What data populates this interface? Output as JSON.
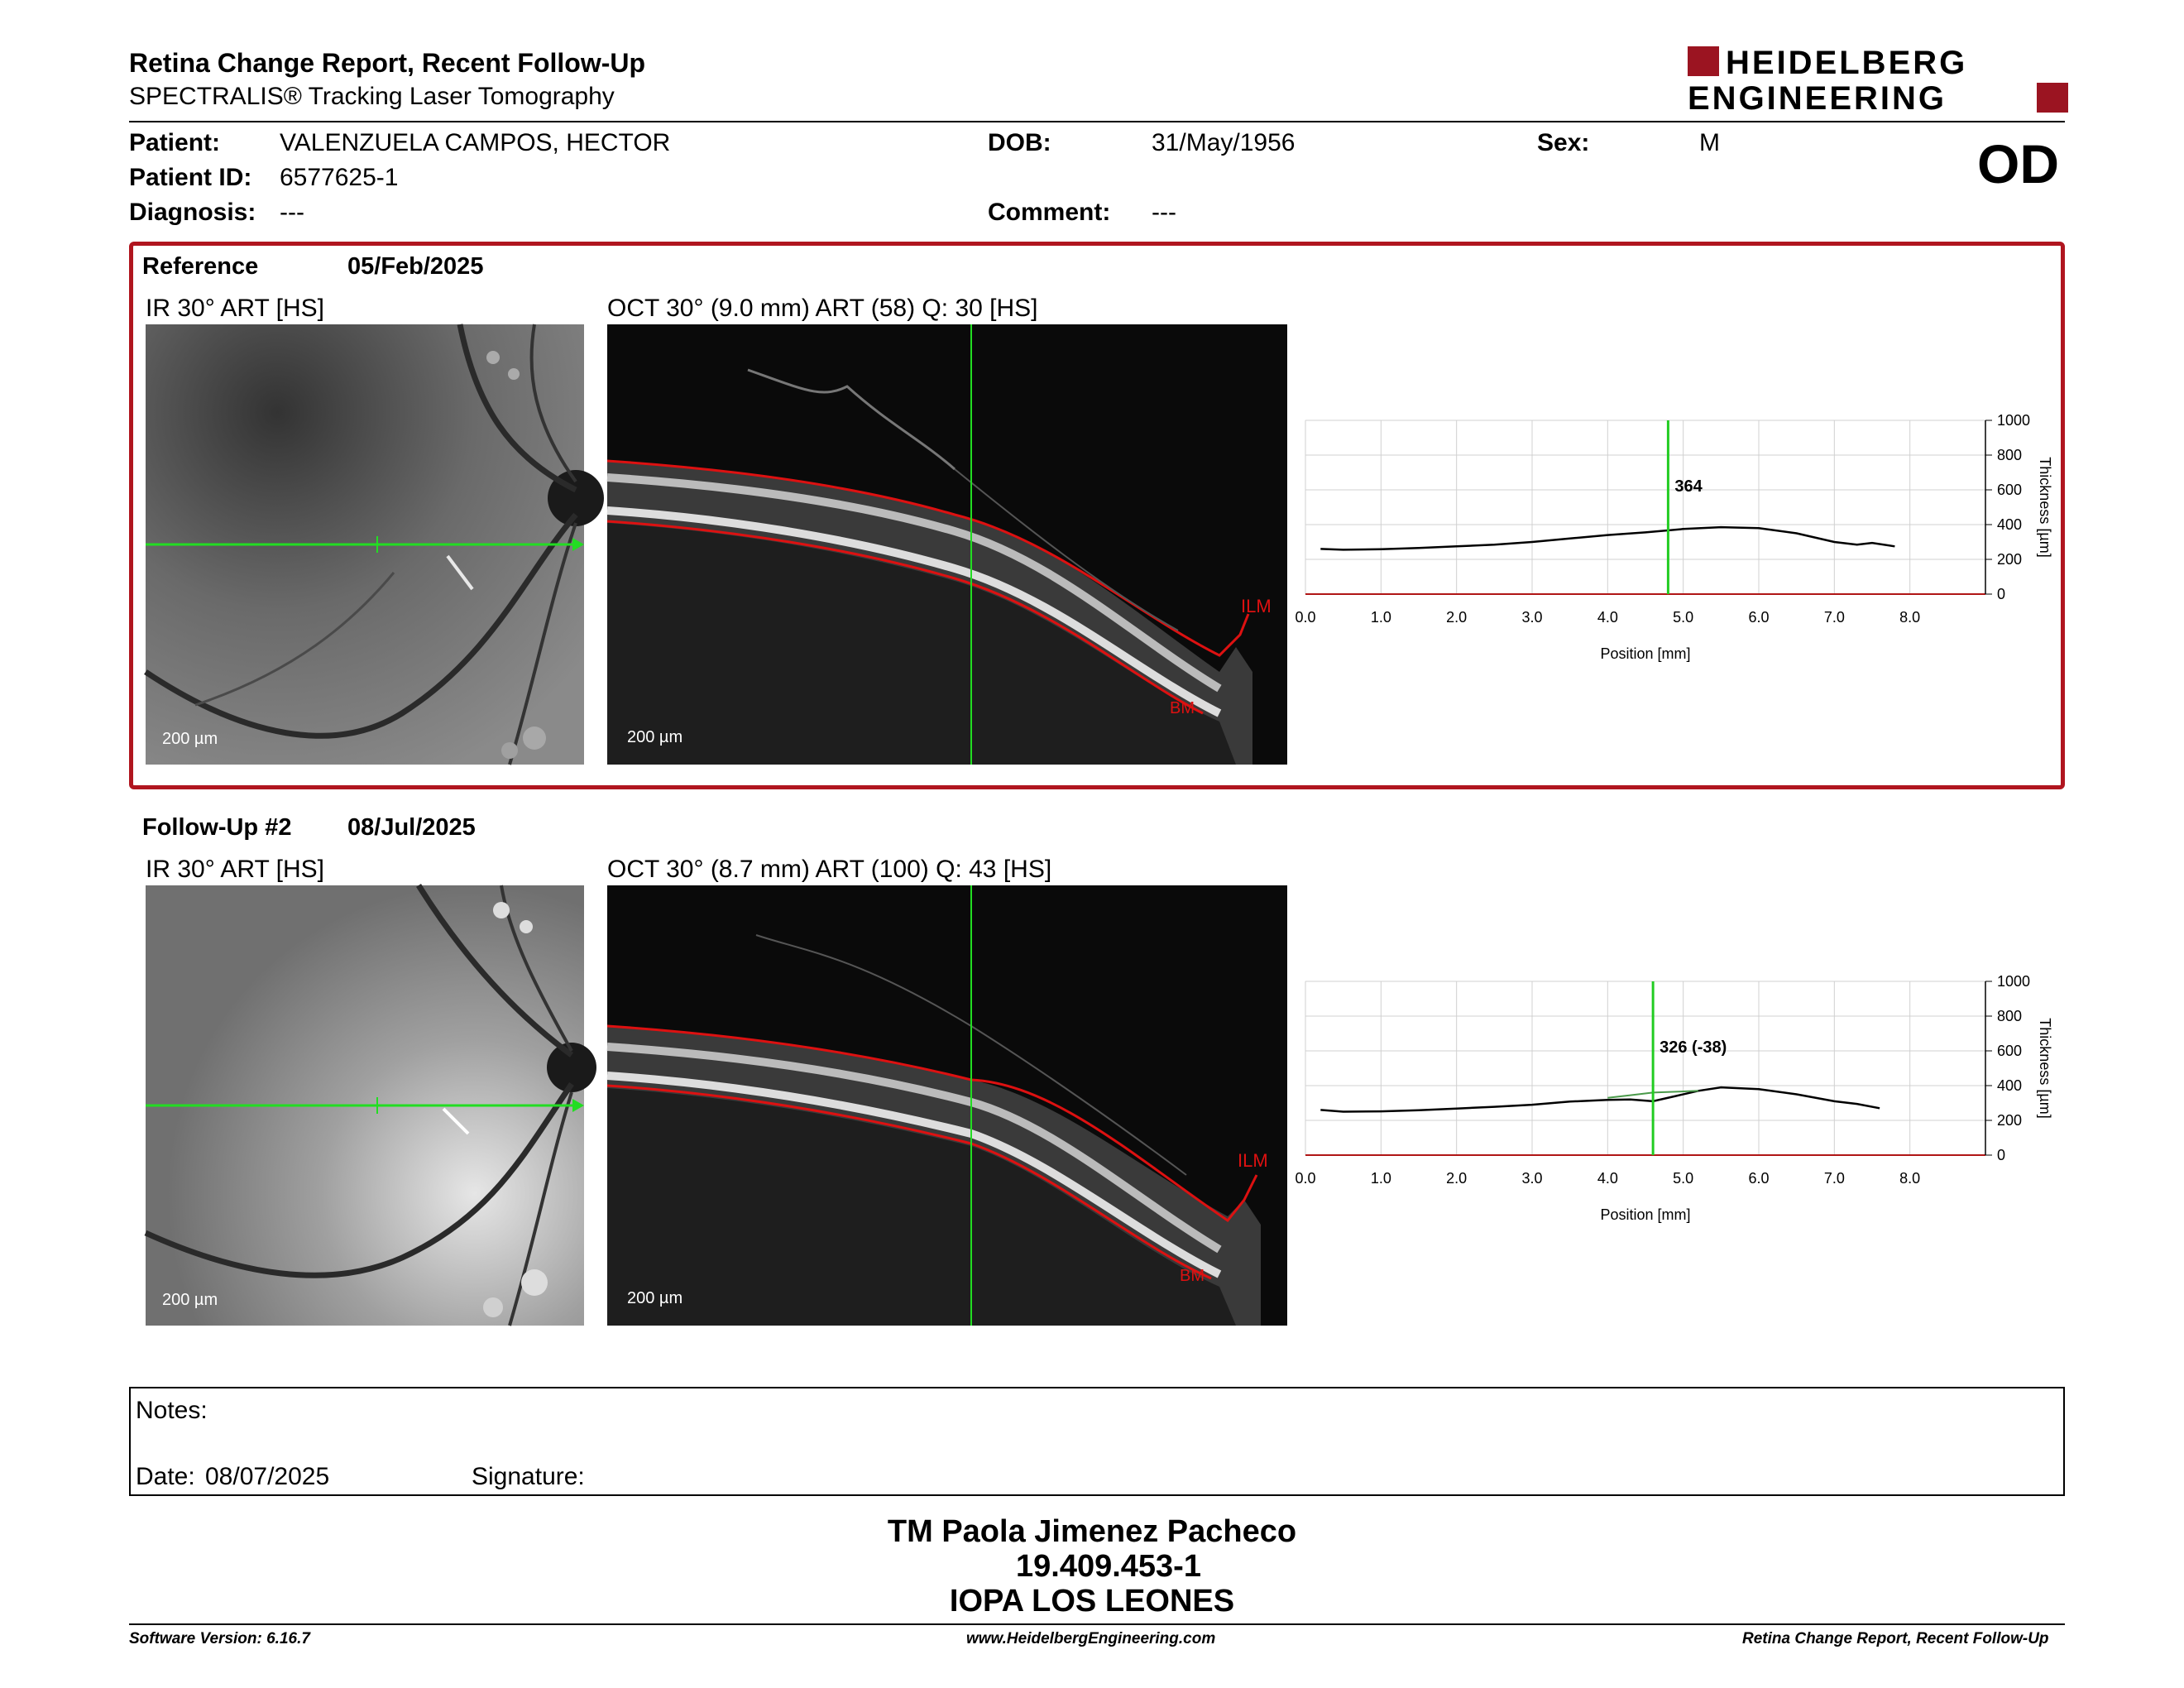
{
  "header": {
    "title": "Retina Change Report, Recent Follow-Up",
    "subtitle": "SPECTRALIS® Tracking Laser Tomography",
    "logo_line1": "HEIDELBERG",
    "logo_line2": "ENGINEERING",
    "eye": "OD"
  },
  "patient": {
    "patient_label": "Patient:",
    "patient_value": "VALENZUELA CAMPOS, HECTOR",
    "id_label": "Patient ID:",
    "id_value": "6577625-1",
    "diagnosis_label": "Diagnosis:",
    "diagnosis_value": "---",
    "dob_label": "DOB:",
    "dob_value": "31/May/1956",
    "comment_label": "Comment:",
    "comment_value": "---",
    "sex_label": "Sex:",
    "sex_value": "M"
  },
  "reference": {
    "label": "Reference",
    "date": "05/Feb/2025",
    "ir_caption": "IR 30° ART [HS]",
    "oct_caption": "OCT 30° (9.0 mm) ART (58) Q: 30 [HS]",
    "ir_scale": "200 µm",
    "oct_scale": "200 µm",
    "ilm": "ILM",
    "bm": "BM"
  },
  "followup": {
    "label": "Follow-Up #2",
    "date": "08/Jul/2025",
    "ir_caption": "IR 30° ART [HS]",
    "oct_caption": "OCT 30° (8.7 mm) ART (100) Q: 43 [HS]",
    "ir_scale": "200 µm",
    "oct_scale": "200 µm",
    "ilm": "ILM",
    "bm": "BM"
  },
  "chart_data": [
    {
      "type": "line",
      "xlabel": "Position [mm]",
      "ylabel": "Thickness [µm]",
      "xlim": [
        0,
        9
      ],
      "ylim": [
        0,
        1000
      ],
      "x_ticks": [
        "0.0",
        "1.0",
        "2.0",
        "3.0",
        "4.0",
        "5.0",
        "6.0",
        "7.0",
        "8.0"
      ],
      "y_ticks": [
        "0",
        "200",
        "400",
        "600",
        "800",
        "1000"
      ],
      "cursor_x": 4.8,
      "cursor_label": "364",
      "series": [
        {
          "x": [
            0.2,
            0.5,
            1.0,
            1.5,
            2.0,
            2.5,
            3.0,
            3.5,
            4.0,
            4.5,
            5.0,
            5.5,
            6.0,
            6.5,
            7.0,
            7.3,
            7.5,
            7.8
          ],
          "y": [
            260,
            255,
            258,
            265,
            275,
            285,
            300,
            320,
            340,
            355,
            375,
            385,
            380,
            350,
            300,
            285,
            295,
            275
          ]
        }
      ],
      "color": "#000000",
      "cursor_color": "#22cc22",
      "grid": true
    },
    {
      "type": "line",
      "xlabel": "Position [mm]",
      "ylabel": "Thickness [µm]",
      "xlim": [
        0,
        9
      ],
      "ylim": [
        0,
        1000
      ],
      "x_ticks": [
        "0.0",
        "1.0",
        "2.0",
        "3.0",
        "4.0",
        "5.0",
        "6.0",
        "7.0",
        "8.0"
      ],
      "y_ticks": [
        "0",
        "200",
        "400",
        "600",
        "800",
        "1000"
      ],
      "cursor_x": 4.6,
      "cursor_label": "326 (-38)",
      "series": [
        {
          "x": [
            0.2,
            0.5,
            1.0,
            1.5,
            2.0,
            2.5,
            3.0,
            3.5,
            4.0,
            4.3,
            4.6,
            4.9,
            5.2,
            5.5,
            6.0,
            6.5,
            7.0,
            7.3,
            7.6
          ],
          "y": [
            260,
            250,
            252,
            258,
            268,
            278,
            290,
            308,
            318,
            320,
            310,
            340,
            370,
            390,
            380,
            350,
            310,
            295,
            270
          ]
        },
        {
          "x": [
            4.0,
            4.3,
            4.6,
            4.9,
            5.2
          ],
          "y": [
            330,
            345,
            360,
            365,
            370
          ]
        }
      ],
      "color": "#000000",
      "cursor_color": "#22cc22",
      "grid": true
    }
  ],
  "notes": {
    "notes_label": "Notes:",
    "date_label": "Date:",
    "date_value": "08/07/2025",
    "signature_label": "Signature:"
  },
  "signer": {
    "name": "TM Paola Jimenez Pacheco",
    "id": "19.409.453-1",
    "institution": "IOPA LOS LEONES"
  },
  "footer": {
    "software": "Software Version: 6.16.7",
    "website": "www.HeidelbergEngineering.com",
    "report_name": "Retina Change Report, Recent Follow-Up"
  }
}
